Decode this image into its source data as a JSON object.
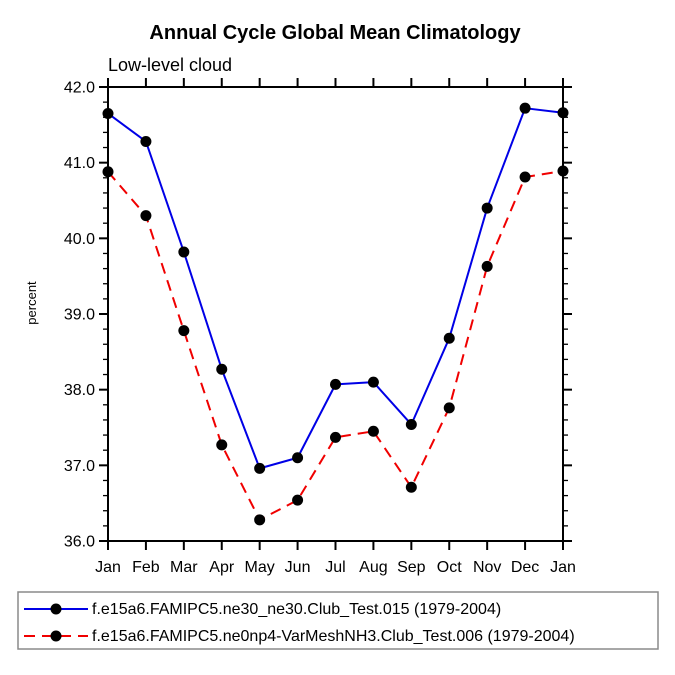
{
  "chart_data": {
    "type": "line",
    "title": "Annual Cycle Global Mean Climatology",
    "subtitle": "Low-level cloud",
    "xlabel": "",
    "ylabel": "percent",
    "ylim": [
      36.0,
      42.0
    ],
    "ytick_major_interval": 1.0,
    "ytick_minor_interval": 0.2,
    "ytick_label_format": "one_decimal",
    "grid": "off",
    "legend_position": "bottom-left-boxed",
    "frame_color": "#000000",
    "categories": [
      "Jan",
      "Feb",
      "Mar",
      "Apr",
      "May",
      "Jun",
      "Jul",
      "Aug",
      "Sep",
      "Oct",
      "Nov",
      "Dec",
      "Jan"
    ],
    "series": [
      {
        "name": "f.e15a6.FAMIPC5.ne30_ne30.Club_Test.015 (1979-2004)",
        "color": "#0000e6",
        "line_style": "solid",
        "marker": "filled-circle",
        "marker_color": "#000000",
        "values": [
          41.65,
          41.28,
          39.82,
          38.27,
          36.96,
          37.1,
          38.07,
          38.1,
          37.54,
          38.68,
          40.4,
          41.72,
          41.66
        ]
      },
      {
        "name": "f.e15a6.FAMIPC5.ne0np4-VarMeshNH3.Club_Test.006 (1979-2004)",
        "color": "#f00000",
        "line_style": "dashed",
        "marker": "filled-circle",
        "marker_color": "#000000",
        "values": [
          40.88,
          40.3,
          38.78,
          37.27,
          36.28,
          36.54,
          37.37,
          37.45,
          36.71,
          37.76,
          39.63,
          40.81,
          40.89
        ]
      }
    ]
  }
}
